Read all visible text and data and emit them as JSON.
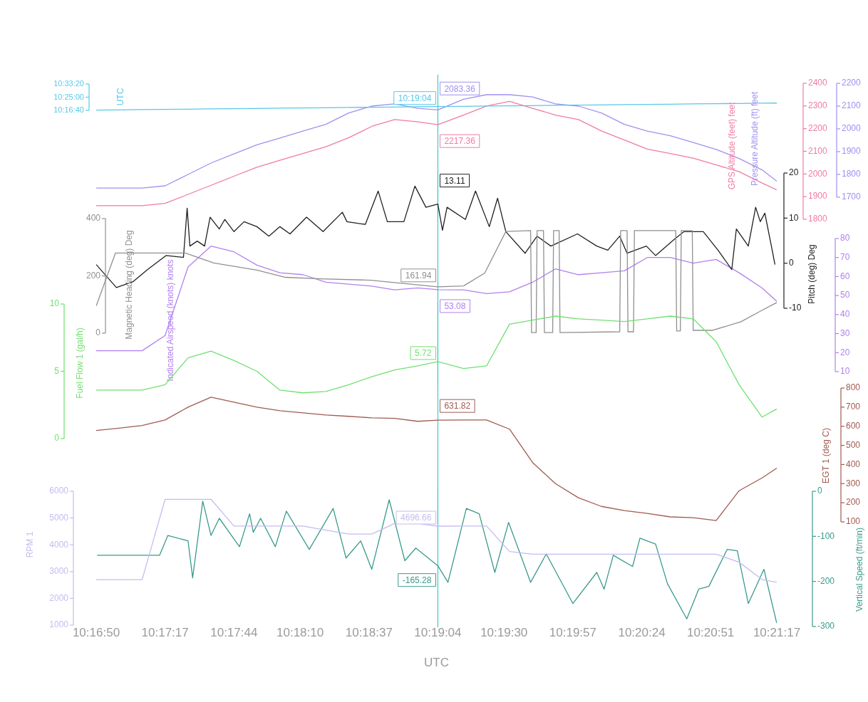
{
  "chart_data": [
    {
      "type": "line",
      "marker": "none",
      "tick_labels": "y",
      "x": [
        10.2806,
        10.2831,
        10.2856,
        10.2881,
        10.2906,
        10.2931,
        10.2956,
        10.2981,
        10.3006,
        10.3031,
        10.3056,
        10.3081,
        10.3106,
        10.3131,
        10.3156,
        10.3178,
        10.3206,
        10.3231,
        10.3256,
        10.3281,
        10.3306,
        10.3331,
        10.3356,
        10.3381,
        10.3406,
        10.3431,
        10.3456,
        10.3481,
        10.3506,
        10.3531,
        10.3547
      ],
      "xlim": [
        10.2806,
        10.3547
      ],
      "ylabel": "UTC",
      "ylim": [
        10.2778,
        10.5556
      ],
      "yticks": [
        {
          "value": 10.2778,
          "label": "10:16:40"
        },
        {
          "value": 10.4167,
          "label": "10:25:00"
        },
        {
          "value": 10.5556,
          "label": "10:33:20"
        }
      ],
      "y2label": "GPS Altitude (feet) feet",
      "y2lim": [
        1800,
        2400
      ],
      "y2ticks": [
        1800,
        1900,
        2000,
        2100,
        2200,
        2300,
        2400
      ],
      "y3label": "Pressure Altitude (ft) feet",
      "y3lim": [
        1700,
        2200
      ],
      "y3ticks": [
        1700,
        1800,
        1900,
        2000,
        2100,
        2200
      ],
      "series": [
        {
          "color": "#58c8e8",
          "values": [
            10.2806,
            10.2831,
            10.2856,
            10.2881,
            10.2906,
            10.2931,
            10.2956,
            10.2981,
            10.3006,
            10.3031,
            10.3056,
            10.3081,
            10.3106,
            10.3131,
            10.3156,
            10.3178,
            10.3206,
            10.3231,
            10.3256,
            10.3281,
            10.3306,
            10.3331,
            10.3356,
            10.3381,
            10.3406,
            10.3431,
            10.3456,
            10.3481,
            10.3506,
            10.3531,
            10.3547
          ]
        },
        {
          "axis": "y2",
          "color": "#f07ca0",
          "values": [
            1860,
            1860,
            1860,
            1870,
            1910,
            1950,
            1990,
            2030,
            2060,
            2090,
            2120,
            2160,
            2210,
            2240,
            2230,
            2217.36,
            2260,
            2300,
            2320,
            2290,
            2260,
            2240,
            2190,
            2150,
            2110,
            2090,
            2070,
            2040,
            2010,
            1960,
            1930
          ]
        },
        {
          "axis": "y3",
          "color": "#a090f0",
          "values": [
            1740,
            1740,
            1740,
            1750,
            1800,
            1850,
            1890,
            1930,
            1960,
            1990,
            2020,
            2070,
            2100,
            2110,
            2090,
            2083.36,
            2130,
            2150,
            2150,
            2140,
            2110,
            2100,
            2070,
            2020,
            1990,
            1970,
            1940,
            1910,
            1870,
            1820,
            1770
          ]
        }
      ],
      "annotations": [
        "10:19:04",
        "2217.36",
        "2083.36"
      ],
      "ref_lines": [
        {
          "axis": "x",
          "value": 10.3178,
          "color": "#40c8d0"
        }
      ]
    },
    {
      "type": "line",
      "marker": "none",
      "tick_labels": "y",
      "x": [
        10.2806,
        10.2831,
        10.2856,
        10.2881,
        10.2906,
        10.2931,
        10.2956,
        10.2981,
        10.3006,
        10.3031,
        10.3056,
        10.3081,
        10.3106,
        10.3131,
        10.3156,
        10.3178,
        10.3206,
        10.3231,
        10.3256,
        10.3281,
        10.3306,
        10.3331,
        10.3356,
        10.3381,
        10.3406,
        10.3431,
        10.3456,
        10.3481,
        10.3506,
        10.3531,
        10.3547
      ],
      "xlim": [
        10.2806,
        10.3547
      ],
      "ylabel": "Magnetic Heading (deg) Deg",
      "ylim": [
        0,
        400
      ],
      "yticks": [
        0,
        200,
        400
      ],
      "y2label": "Pitch (deg) Deg",
      "y2lim": [
        -10,
        20
      ],
      "y2ticks": [
        -10,
        0,
        10,
        20
      ],
      "y3label": "Indicated Airspeed (knots) knots",
      "y3lim": [
        10,
        80
      ],
      "y3ticks": [
        10,
        20,
        30,
        40,
        50,
        60,
        70,
        80
      ],
      "series": [
        {
          "color": "#909090",
          "x": [
            10.2806,
            10.2827,
            10.2903,
            10.2934,
            10.2981,
            10.3012,
            10.305,
            10.3105,
            10.3178,
            10.3206,
            10.3229,
            10.3252,
            10.3279,
            10.328,
            10.3285,
            10.3286,
            10.3293,
            10.3294,
            10.3303,
            10.3304,
            10.331,
            10.3311,
            10.3376,
            10.3377,
            10.3384,
            10.3385,
            10.3391,
            10.3392,
            10.3437,
            10.3438,
            10.3442,
            10.3443,
            10.3455,
            10.3456,
            10.3477,
            10.3508,
            10.3531,
            10.3547
          ],
          "values": [
            95,
            280,
            280,
            245,
            220,
            195,
            190,
            185,
            161.94,
            165,
            210,
            355,
            358,
            2,
            2,
            358,
            358,
            2,
            2,
            358,
            358,
            2,
            5,
            358,
            358,
            5,
            5,
            358,
            358,
            8,
            8,
            358,
            358,
            10,
            10,
            40,
            80,
            107
          ]
        },
        {
          "axis": "y2",
          "color": "#202020",
          "x": [
            10.2806,
            10.2828,
            10.2846,
            10.2862,
            10.2882,
            10.2901,
            10.2905,
            10.2908,
            10.2916,
            10.2924,
            10.293,
            10.294,
            10.2946,
            10.2956,
            10.2967,
            10.2981,
            10.2994,
            10.3006,
            10.3017,
            10.3035,
            10.3053,
            10.3074,
            10.3079,
            10.3099,
            10.3113,
            10.3123,
            10.3141,
            10.3153,
            10.3165,
            10.3178,
            10.3183,
            10.3188,
            10.3208,
            10.3219,
            10.3234,
            10.3243,
            10.3252,
            10.3273,
            10.3286,
            10.3301,
            10.333,
            10.3351,
            10.3363,
            10.3376,
            10.3384,
            10.3405,
            10.3415,
            10.3436,
            10.3446,
            10.3467,
            10.3483,
            10.3498,
            10.3503,
            10.3516,
            10.3524,
            10.3529,
            10.3534,
            10.3542,
            10.3545
          ],
          "values": [
            -0.3,
            -5.4,
            -4.1,
            -1.4,
            1.7,
            1.3,
            12.2,
            3.8,
            4.9,
            3.8,
            10.2,
            7.6,
            9.7,
            7.0,
            9.2,
            8.1,
            6.0,
            8.1,
            6.5,
            10.2,
            7.0,
            11.3,
            9.2,
            8.6,
            16.0,
            9.2,
            9.2,
            17.1,
            12.4,
            13.11,
            7.3,
            12.4,
            9.7,
            16.0,
            8.1,
            14.4,
            7.0,
            2.2,
            6.0,
            3.8,
            6.5,
            3.8,
            2.9,
            6.0,
            2.2,
            3.8,
            1.7,
            5.4,
            7.0,
            7.0,
            2.9,
            -1.4,
            7.6,
            3.8,
            12.4,
            9.2,
            11.1,
            2.9,
            -0.3
          ]
        },
        {
          "axis": "y3",
          "color": "#b080f0",
          "values": [
            21,
            21,
            21,
            29,
            65,
            76,
            73,
            66,
            62,
            61,
            57,
            56,
            55,
            53,
            54,
            53.08,
            53,
            51,
            52,
            57,
            64,
            61,
            62,
            63,
            70,
            70,
            67,
            69,
            62,
            54,
            47
          ]
        }
      ],
      "annotations": [
        "161.94",
        "13.11",
        "53.08"
      ],
      "ref_lines": [
        {
          "axis": "x",
          "value": 10.3178,
          "color": "#40c8d0"
        }
      ]
    },
    {
      "type": "line",
      "marker": "none",
      "tick_labels": "y",
      "x": [
        10.2806,
        10.2831,
        10.2856,
        10.2881,
        10.2906,
        10.2931,
        10.2956,
        10.2981,
        10.3006,
        10.3031,
        10.3056,
        10.3081,
        10.3106,
        10.3131,
        10.3156,
        10.3178,
        10.3206,
        10.3231,
        10.3256,
        10.3281,
        10.3306,
        10.3331,
        10.3356,
        10.3381,
        10.3406,
        10.3431,
        10.3456,
        10.3481,
        10.3506,
        10.3531,
        10.3547
      ],
      "xlim": [
        10.2806,
        10.3547
      ],
      "ylabel": "Fuel Flow 1 (gal/h)",
      "ylim": [
        0,
        10
      ],
      "yticks": [
        0,
        5,
        10
      ],
      "y2label": "EGT 1 (deg C)",
      "y2lim": [
        100,
        800
      ],
      "y2ticks": [
        100,
        200,
        300,
        400,
        500,
        600,
        700,
        800
      ],
      "series": [
        {
          "color": "#70e070",
          "values": [
            3.6,
            3.6,
            3.6,
            4.0,
            6.0,
            6.5,
            5.8,
            5.0,
            3.6,
            3.4,
            3.5,
            4.0,
            4.6,
            5.1,
            5.4,
            5.72,
            5.2,
            5.4,
            8.5,
            8.8,
            9.1,
            8.9,
            8.8,
            8.7,
            8.9,
            9.1,
            8.9,
            7.2,
            4.0,
            1.6,
            2.2
          ]
        },
        {
          "axis": "y2",
          "color": "#a05a50",
          "values": [
            578,
            590,
            604,
            633,
            700,
            752,
            726,
            700,
            681,
            670,
            659,
            652,
            644,
            641,
            626,
            631.82,
            633,
            633,
            585,
            411,
            300,
            226,
            181,
            159,
            144,
            126,
            122,
            107,
            263,
            330,
            381
          ]
        }
      ],
      "annotations": [
        "5.72",
        "631.82"
      ],
      "ref_lines": [
        {
          "axis": "x",
          "value": 10.3178,
          "color": "#40c8d0"
        }
      ]
    },
    {
      "type": "line",
      "marker": "none",
      "xlabel": "UTC",
      "x": [
        10.2806,
        10.2831,
        10.2856,
        10.2881,
        10.2906,
        10.2931,
        10.2956,
        10.2981,
        10.3006,
        10.3031,
        10.3056,
        10.3081,
        10.3106,
        10.3131,
        10.3156,
        10.3178,
        10.3206,
        10.3231,
        10.3256,
        10.3281,
        10.3306,
        10.3331,
        10.3356,
        10.3381,
        10.3406,
        10.3431,
        10.3456,
        10.3481,
        10.3506,
        10.3531,
        10.3547
      ],
      "xlim": [
        10.2806,
        10.3547
      ],
      "xticks": [
        {
          "value": 10.2806,
          "label": "10:16:50"
        },
        {
          "value": 10.2881,
          "label": "10:17:17"
        },
        {
          "value": 10.2956,
          "label": "10:17:44"
        },
        {
          "value": 10.3028,
          "label": "10:18:10"
        },
        {
          "value": 10.3103,
          "label": "10:18:37"
        },
        {
          "value": 10.3178,
          "label": "10:19:04"
        },
        {
          "value": 10.325,
          "label": "10:19:30"
        },
        {
          "value": 10.3325,
          "label": "10:19:57"
        },
        {
          "value": 10.34,
          "label": "10:20:24"
        },
        {
          "value": 10.3475,
          "label": "10:20:51"
        },
        {
          "value": 10.3547,
          "label": "10:21:17"
        }
      ],
      "ylabel": "RPM 1",
      "ylim": [
        1000,
        6000
      ],
      "yticks": [
        1000,
        2000,
        3000,
        4000,
        5000,
        6000
      ],
      "y2label": "Vertical Speed (ft/min)",
      "y2lim": [
        -300,
        0
      ],
      "y2ticks": [
        -300,
        -200,
        -100,
        0
      ],
      "series": [
        {
          "color": "#c4bcf0",
          "values": [
            2700,
            2700,
            2700,
            5700,
            5700,
            5700,
            4700,
            4700,
            4700,
            4700,
            4550,
            4400,
            4400,
            4800,
            4800,
            4696.66,
            4700,
            4700,
            3750,
            3650,
            3650,
            3650,
            3650,
            3650,
            3650,
            3650,
            3650,
            3650,
            3350,
            2700,
            2600
          ]
        },
        {
          "axis": "y2",
          "color": "#3a9a8c",
          "x": [
            10.2807,
            10.2875,
            10.2884,
            10.2906,
            10.2911,
            10.2922,
            10.2931,
            10.294,
            10.2962,
            10.2973,
            10.2977,
            10.2985,
            10.3001,
            10.3013,
            10.3038,
            10.3064,
            10.3078,
            10.3094,
            10.3106,
            10.3125,
            10.3142,
            10.3154,
            10.3178,
            10.3189,
            10.3209,
            10.3223,
            10.324,
            10.3255,
            10.3279,
            10.3296,
            10.3325,
            10.3351,
            10.3359,
            10.3369,
            10.339,
            10.3398,
            10.3415,
            10.3428,
            10.3449,
            10.3462,
            10.3473,
            10.3493,
            10.3504,
            10.3516,
            10.3533,
            10.3547
          ],
          "values": [
            -142,
            -142,
            -98,
            -110,
            -192,
            -22,
            -98,
            -60,
            -123,
            -50,
            -91,
            -60,
            -123,
            -44,
            -129,
            -38,
            -148,
            -110,
            -173,
            -19,
            -154,
            -126,
            -165.28,
            -202,
            -38,
            -50,
            -180,
            -69,
            -202,
            -139,
            -249,
            -180,
            -217,
            -142,
            -167,
            -104,
            -117,
            -205,
            -283,
            -217,
            -211,
            -129,
            -132,
            -249,
            -173,
            -293
          ]
        }
      ],
      "annotations": [
        "4696.66",
        "-165.28"
      ],
      "ref_lines": [
        {
          "axis": "x",
          "value": 10.3178,
          "color": "#40c8d0"
        }
      ]
    }
  ]
}
